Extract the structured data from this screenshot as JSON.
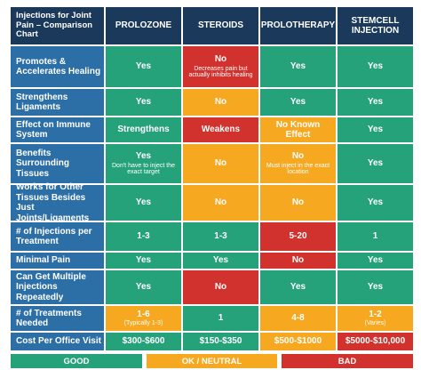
{
  "header": {
    "title": "Injections for Joint Pain – Comparison Chart",
    "columns": [
      "PROLOZONE",
      "STEROIDS",
      "PROLOTHERAPY",
      "STEMCELL INJECTION"
    ]
  },
  "rows": [
    {
      "label": "Promotes & Accelerates Healing",
      "cells": [
        {
          "text": "Yes",
          "color": "#26a27b"
        },
        {
          "text": "No",
          "note": "Decreases pain but actually inhibits healing",
          "color": "#d2322d"
        },
        {
          "text": "Yes",
          "color": "#26a27b"
        },
        {
          "text": "Yes",
          "color": "#26a27b"
        }
      ]
    },
    {
      "label": "Strengthens Ligaments",
      "cells": [
        {
          "text": "Yes",
          "color": "#26a27b"
        },
        {
          "text": "No",
          "color": "#f6a821"
        },
        {
          "text": "Yes",
          "color": "#26a27b"
        },
        {
          "text": "Yes",
          "color": "#26a27b"
        }
      ]
    },
    {
      "label": "Effect on Immune System",
      "cells": [
        {
          "text": "Strengthens",
          "color": "#26a27b"
        },
        {
          "text": "Weakens",
          "color": "#d2322d"
        },
        {
          "text": "No Known Effect",
          "color": "#f6a821"
        },
        {
          "text": "Yes",
          "color": "#26a27b"
        }
      ]
    },
    {
      "label": "Benefits Surrounding Tissues",
      "cells": [
        {
          "text": "Yes",
          "note": "Don't have to inject the exact target",
          "color": "#26a27b"
        },
        {
          "text": "No",
          "color": "#f6a821"
        },
        {
          "text": "No",
          "note": "Must inject in the exact location",
          "color": "#f6a821"
        },
        {
          "text": "Yes",
          "color": "#26a27b"
        }
      ]
    },
    {
      "label": "Works for Other Tissues Besides Just Joints/Ligaments",
      "cells": [
        {
          "text": "Yes",
          "color": "#26a27b"
        },
        {
          "text": "No",
          "color": "#f6a821"
        },
        {
          "text": "No",
          "color": "#f6a821"
        },
        {
          "text": "Yes",
          "color": "#26a27b"
        }
      ]
    },
    {
      "label": "# of Injections per Treatment",
      "cells": [
        {
          "text": "1-3",
          "color": "#26a27b"
        },
        {
          "text": "1-3",
          "color": "#26a27b"
        },
        {
          "text": "5-20",
          "color": "#d2322d"
        },
        {
          "text": "1",
          "color": "#26a27b"
        }
      ]
    },
    {
      "label": "Minimal Pain",
      "cells": [
        {
          "text": "Yes",
          "color": "#26a27b"
        },
        {
          "text": "Yes",
          "color": "#26a27b"
        },
        {
          "text": "No",
          "color": "#d2322d"
        },
        {
          "text": "Yes",
          "color": "#26a27b"
        }
      ]
    },
    {
      "label": "Can Get Multiple Injections Repeatedly",
      "cells": [
        {
          "text": "Yes",
          "color": "#26a27b"
        },
        {
          "text": "No",
          "color": "#d2322d"
        },
        {
          "text": "Yes",
          "color": "#26a27b"
        },
        {
          "text": "Yes",
          "color": "#26a27b"
        }
      ]
    },
    {
      "label": "# of Treatments Needed",
      "cells": [
        {
          "text": "1-6",
          "note": "(Typically 1-3)",
          "color": "#f6a821"
        },
        {
          "text": "1",
          "color": "#26a27b"
        },
        {
          "text": "4-8",
          "color": "#f6a821"
        },
        {
          "text": "1-2",
          "note": "(Varies)",
          "color": "#f6a821"
        }
      ]
    },
    {
      "label": "Cost Per Office Visit",
      "cells": [
        {
          "text": "$300-$600",
          "color": "#26a27b"
        },
        {
          "text": "$150-$350",
          "color": "#26a27b"
        },
        {
          "text": "$500-$1000",
          "color": "#f6a821"
        },
        {
          "text": "$5000-$10,000",
          "color": "#d2322d"
        }
      ]
    }
  ],
  "legend": [
    {
      "label": "GOOD",
      "color": "#26a27b"
    },
    {
      "label": "OK / NEUTRAL",
      "color": "#f6a821"
    },
    {
      "label": "BAD",
      "color": "#d2322d"
    }
  ]
}
